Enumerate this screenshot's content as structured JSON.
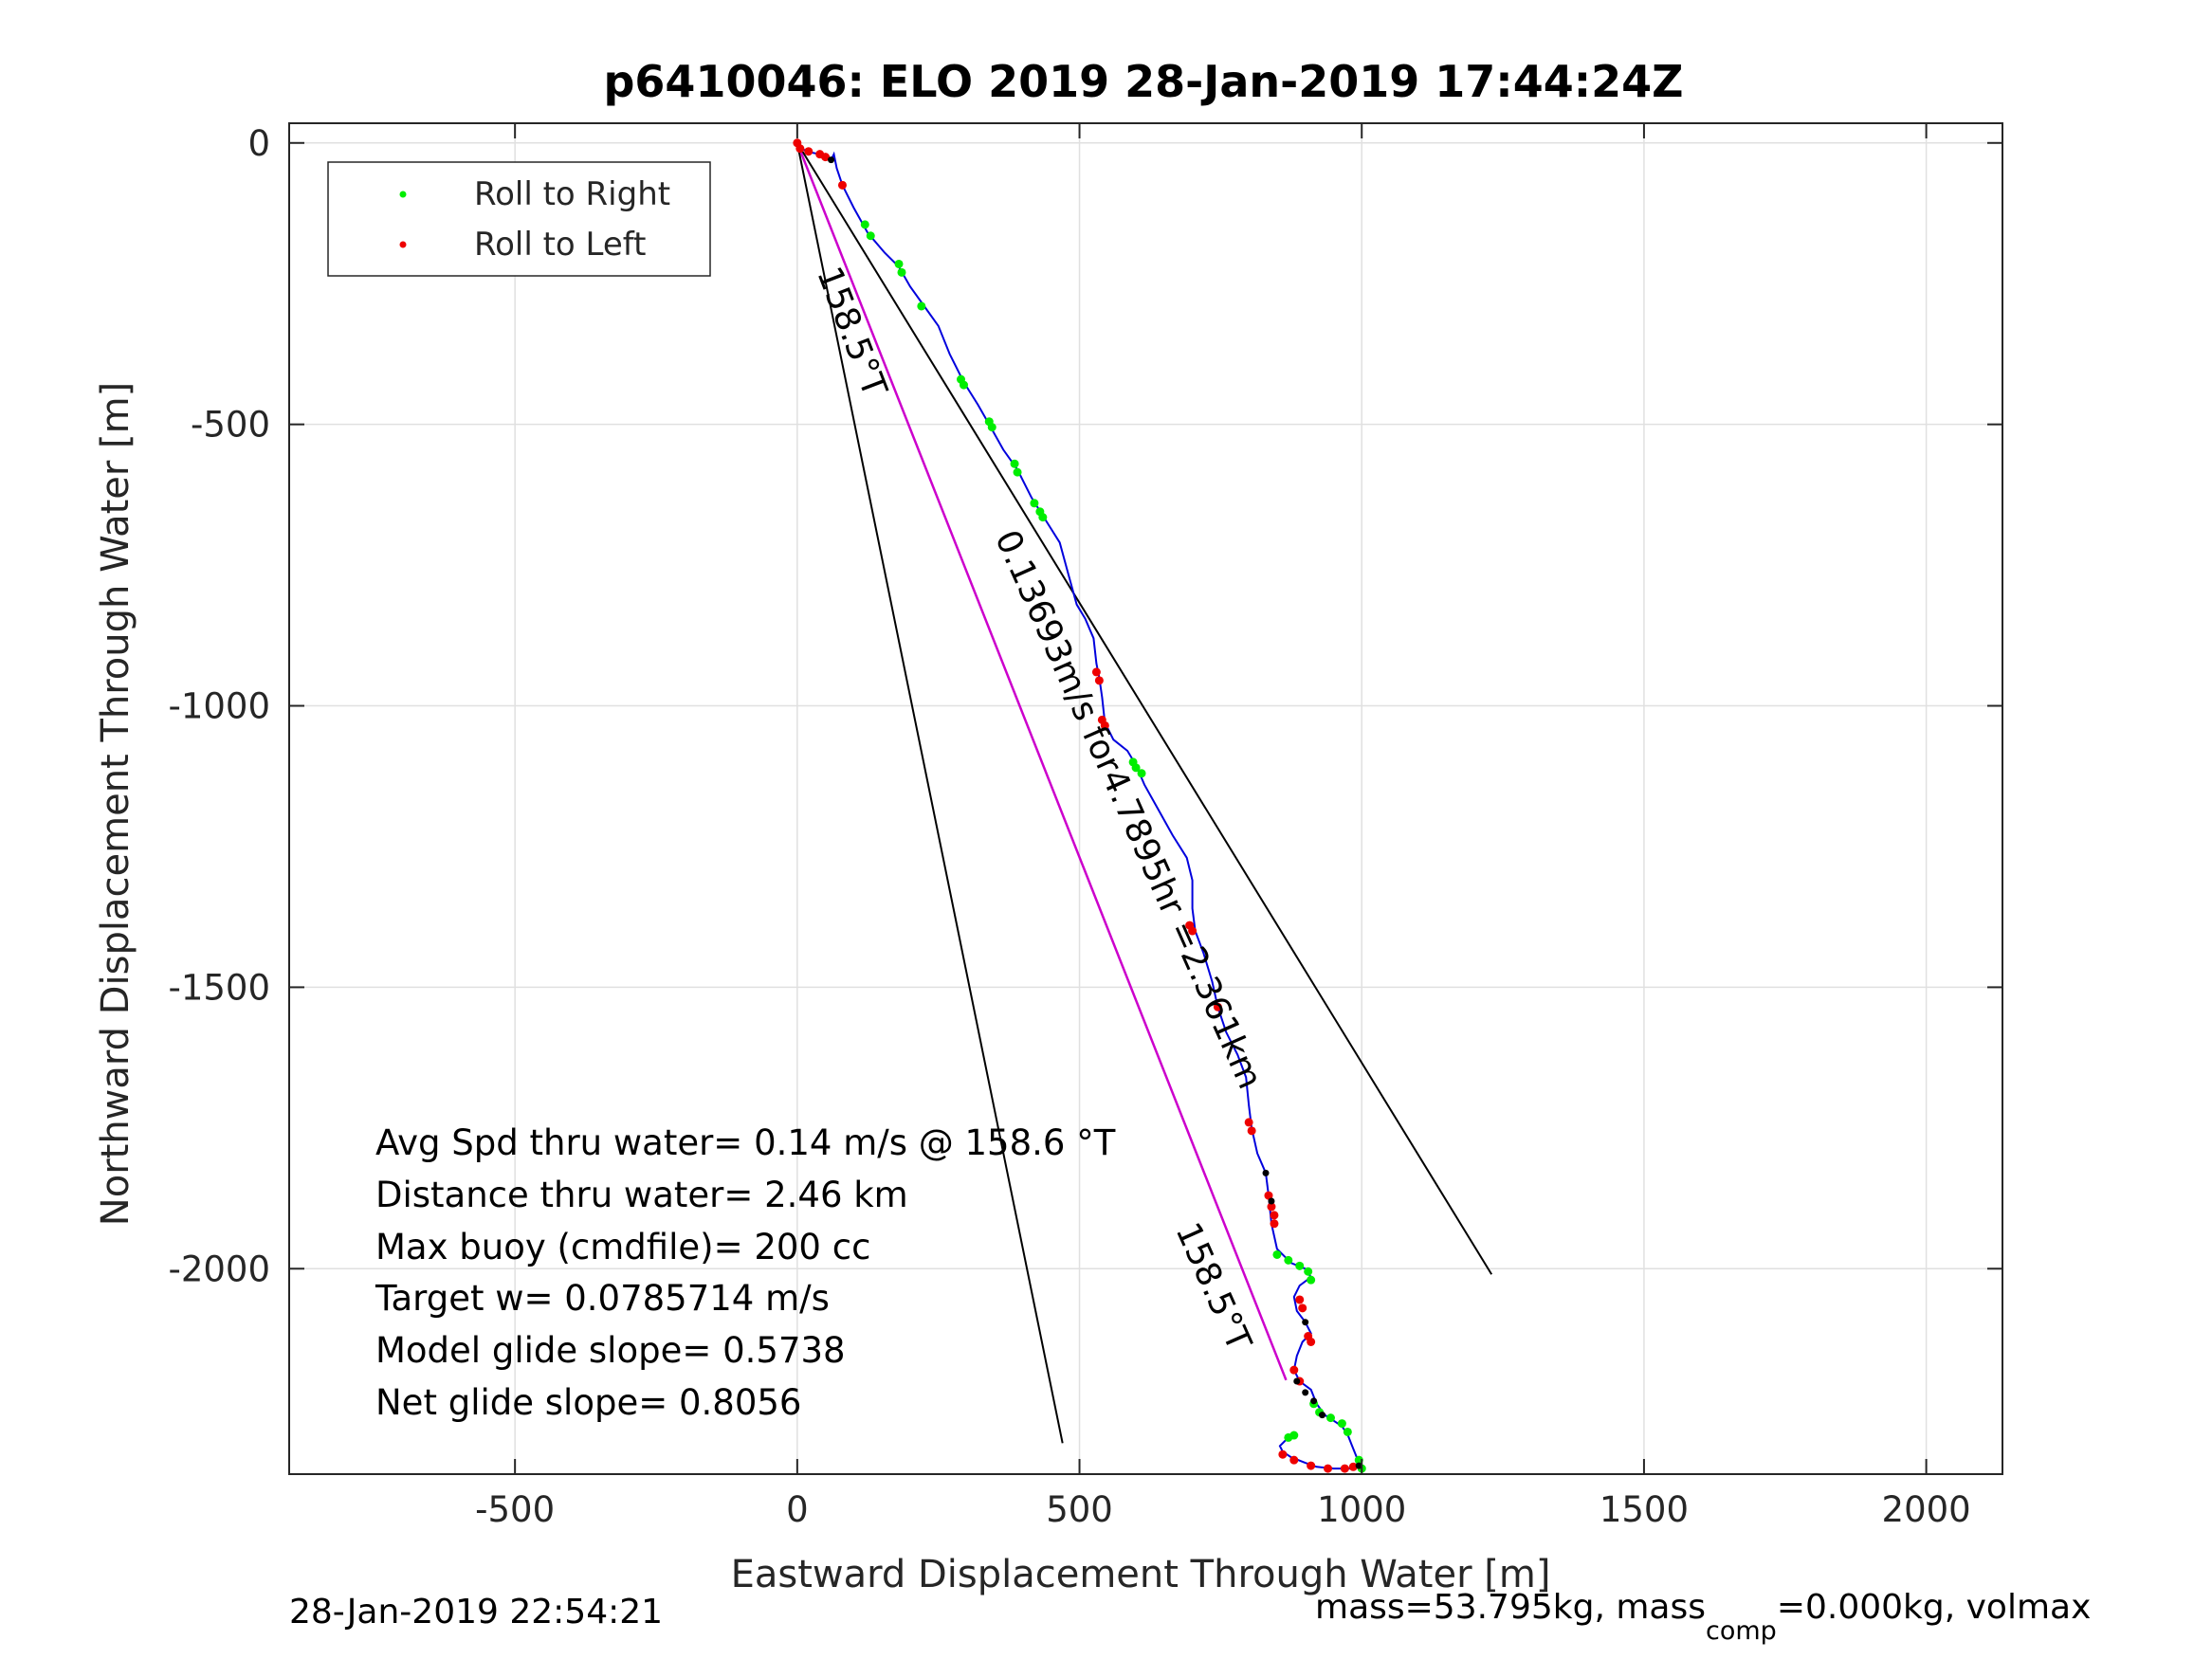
{
  "chart_data": {
    "type": "scatter",
    "title": "p6410046: ELO 2019 28-Jan-2019 17:44:24Z",
    "xlabel": "Eastward Displacement Through Water [m]",
    "ylabel": "Northward Displacement Through Water [m]",
    "xlim": [
      -900,
      2135
    ],
    "ylim": [
      -2365,
      35
    ],
    "x_ticks": [
      -500,
      0,
      500,
      1000,
      1500,
      2000
    ],
    "x_tick_labels": [
      "-500",
      "0",
      "500",
      "1000",
      "1500",
      "2000"
    ],
    "y_ticks": [
      0,
      -500,
      -1000,
      -1500,
      -2000
    ],
    "y_tick_labels": [
      "0",
      "-500",
      "-1000",
      "-1500",
      "-2000"
    ],
    "grid": true,
    "legend_position": "top-left",
    "legend": [
      {
        "label": "Roll to Right",
        "color": "#00ee00"
      },
      {
        "label": "Roll to Left",
        "color": "#ee0000"
      }
    ],
    "colors": {
      "track": "#0000dd",
      "avg_line": "#cc00cc",
      "lines": "#000000",
      "right": "#00ee00",
      "left": "#ee0000"
    },
    "track": [
      [
        0,
        0
      ],
      [
        5,
        -5
      ],
      [
        15,
        -15
      ],
      [
        40,
        -20
      ],
      [
        60,
        -30
      ],
      [
        65,
        -20
      ],
      [
        70,
        -45
      ],
      [
        80,
        -75
      ],
      [
        100,
        -115
      ],
      [
        125,
        -160
      ],
      [
        155,
        -195
      ],
      [
        180,
        -220
      ],
      [
        200,
        -255
      ],
      [
        225,
        -290
      ],
      [
        250,
        -325
      ],
      [
        270,
        -375
      ],
      [
        295,
        -425
      ],
      [
        320,
        -465
      ],
      [
        340,
        -500
      ],
      [
        365,
        -545
      ],
      [
        390,
        -580
      ],
      [
        415,
        -630
      ],
      [
        440,
        -670
      ],
      [
        465,
        -710
      ],
      [
        480,
        -765
      ],
      [
        495,
        -820
      ],
      [
        510,
        -845
      ],
      [
        525,
        -880
      ],
      [
        530,
        -925
      ],
      [
        535,
        -950
      ],
      [
        540,
        -985
      ],
      [
        545,
        -1030
      ],
      [
        560,
        -1060
      ],
      [
        585,
        -1080
      ],
      [
        600,
        -1105
      ],
      [
        615,
        -1140
      ],
      [
        640,
        -1185
      ],
      [
        665,
        -1230
      ],
      [
        690,
        -1270
      ],
      [
        700,
        -1310
      ],
      [
        700,
        -1360
      ],
      [
        705,
        -1400
      ],
      [
        720,
        -1440
      ],
      [
        735,
        -1490
      ],
      [
        745,
        -1535
      ],
      [
        760,
        -1580
      ],
      [
        780,
        -1620
      ],
      [
        795,
        -1660
      ],
      [
        800,
        -1710
      ],
      [
        805,
        -1750
      ],
      [
        815,
        -1795
      ],
      [
        830,
        -1830
      ],
      [
        835,
        -1870
      ],
      [
        840,
        -1920
      ],
      [
        850,
        -1965
      ],
      [
        875,
        -1990
      ],
      [
        900,
        -2000
      ],
      [
        910,
        -2015
      ],
      [
        890,
        -2030
      ],
      [
        880,
        -2050
      ],
      [
        885,
        -2075
      ],
      [
        900,
        -2095
      ],
      [
        910,
        -2115
      ],
      [
        895,
        -2130
      ],
      [
        885,
        -2155
      ],
      [
        880,
        -2180
      ],
      [
        890,
        -2200
      ],
      [
        910,
        -2215
      ],
      [
        920,
        -2240
      ],
      [
        935,
        -2260
      ],
      [
        950,
        -2270
      ],
      [
        965,
        -2280
      ],
      [
        975,
        -2295
      ],
      [
        985,
        -2320
      ],
      [
        995,
        -2345
      ],
      [
        980,
        -2355
      ],
      [
        950,
        -2355
      ],
      [
        920,
        -2352
      ],
      [
        900,
        -2345
      ],
      [
        875,
        -2335
      ],
      [
        860,
        -2325
      ],
      [
        855,
        -2315
      ],
      [
        870,
        -2300
      ],
      [
        885,
        -2295
      ]
    ],
    "roll_right": [
      [
        120,
        -145
      ],
      [
        130,
        -165
      ],
      [
        180,
        -215
      ],
      [
        185,
        -230
      ],
      [
        220,
        -290
      ],
      [
        290,
        -420
      ],
      [
        295,
        -430
      ],
      [
        340,
        -495
      ],
      [
        345,
        -505
      ],
      [
        385,
        -570
      ],
      [
        390,
        -585
      ],
      [
        420,
        -640
      ],
      [
        430,
        -655
      ],
      [
        435,
        -665
      ],
      [
        595,
        -1100
      ],
      [
        600,
        -1110
      ],
      [
        610,
        -1120
      ],
      [
        850,
        -1975
      ],
      [
        870,
        -1985
      ],
      [
        890,
        -1995
      ],
      [
        905,
        -2005
      ],
      [
        910,
        -2020
      ],
      [
        915,
        -2240
      ],
      [
        925,
        -2255
      ],
      [
        945,
        -2265
      ],
      [
        965,
        -2275
      ],
      [
        975,
        -2290
      ],
      [
        995,
        -2340
      ],
      [
        1000,
        -2355
      ],
      [
        870,
        -2300
      ],
      [
        880,
        -2296
      ]
    ],
    "roll_left": [
      [
        0,
        0
      ],
      [
        5,
        -10
      ],
      [
        20,
        -15
      ],
      [
        40,
        -20
      ],
      [
        50,
        -25
      ],
      [
        80,
        -75
      ],
      [
        530,
        -940
      ],
      [
        535,
        -955
      ],
      [
        540,
        -1025
      ],
      [
        545,
        -1035
      ],
      [
        695,
        -1390
      ],
      [
        700,
        -1400
      ],
      [
        745,
        -1535
      ],
      [
        800,
        -1740
      ],
      [
        805,
        -1755
      ],
      [
        835,
        -1870
      ],
      [
        840,
        -1890
      ],
      [
        845,
        -1905
      ],
      [
        845,
        -1920
      ],
      [
        890,
        -2055
      ],
      [
        895,
        -2070
      ],
      [
        905,
        -2120
      ],
      [
        910,
        -2130
      ],
      [
        890,
        -2200
      ],
      [
        880,
        -2180
      ],
      [
        860,
        -2330
      ],
      [
        880,
        -2340
      ],
      [
        910,
        -2350
      ],
      [
        940,
        -2355
      ],
      [
        970,
        -2355
      ],
      [
        985,
        -2352
      ]
    ],
    "black_marks": [
      [
        60,
        -30
      ],
      [
        830,
        -1830
      ],
      [
        840,
        -1880
      ],
      [
        900,
        -2095
      ],
      [
        885,
        -2200
      ],
      [
        900,
        -2220
      ],
      [
        915,
        -2235
      ],
      [
        930,
        -2260
      ],
      [
        995,
        -2350
      ]
    ],
    "avg_line": {
      "from": [
        0,
        0
      ],
      "to": [
        866,
        -2198
      ]
    },
    "bound_lines": [
      {
        "from": [
          0,
          0
        ],
        "to": [
          470,
          -2310
        ]
      },
      {
        "from": [
          0,
          0
        ],
        "to": [
          1230,
          -2010
        ]
      }
    ],
    "line_labels": [
      {
        "text": "158.5°T",
        "at": [
          35,
          -230
        ],
        "angle": 69
      },
      {
        "text": "0.13693m/s for4.7895hr =2.361km",
        "at": [
          350,
          -700
        ],
        "angle": 66
      },
      {
        "text": "158.5°T",
        "at": [
          670,
          -1930
        ],
        "angle": 66
      }
    ],
    "annotations": [
      "Avg Spd thru water=  0.14 m/s @ 158.6 °T",
      "Distance thru water=  2.46 km",
      "Max buoy (cmdfile)= 200 cc",
      "Target w= 0.0785714 m/s",
      "Model glide slope= 0.5738",
      "Net glide slope= 0.8056"
    ],
    "footer_left": "28-Jan-2019 22:54:21",
    "footer_right": {
      "part1": "mass=53.795kg, mass",
      "sub": "comp",
      "part2": "=0.000kg, volmax"
    }
  }
}
